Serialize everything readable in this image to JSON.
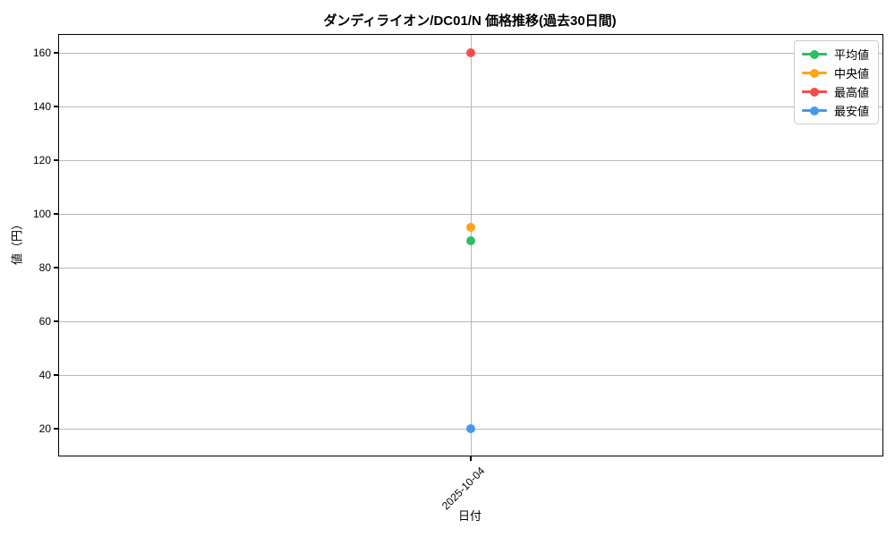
{
  "figure": {
    "background": "#ffffff",
    "grid_color": "#b8b8b8",
    "spine_color": "#000000"
  },
  "chart_data": {
    "type": "scatter",
    "title": "ダンディライオン/DC01/N 価格推移(過去30日間)",
    "xlabel": "日付",
    "ylabel": "値（円）",
    "categories": [
      "2025-10-04"
    ],
    "series": [
      {
        "key": "avg",
        "name": "平均値",
        "color": "#2dbe64",
        "values": [
          90
        ]
      },
      {
        "key": "median",
        "name": "中央値",
        "color": "#ffa41c",
        "values": [
          95
        ]
      },
      {
        "key": "max",
        "name": "最高値",
        "color": "#f74c4c",
        "values": [
          160
        ]
      },
      {
        "key": "min",
        "name": "最安値",
        "color": "#4499ee",
        "values": [
          20
        ]
      }
    ],
    "yticks": [
      20,
      40,
      60,
      80,
      100,
      120,
      140,
      160
    ],
    "ylim": [
      10,
      166.7
    ],
    "grid": true,
    "legend_position": "upper right"
  }
}
